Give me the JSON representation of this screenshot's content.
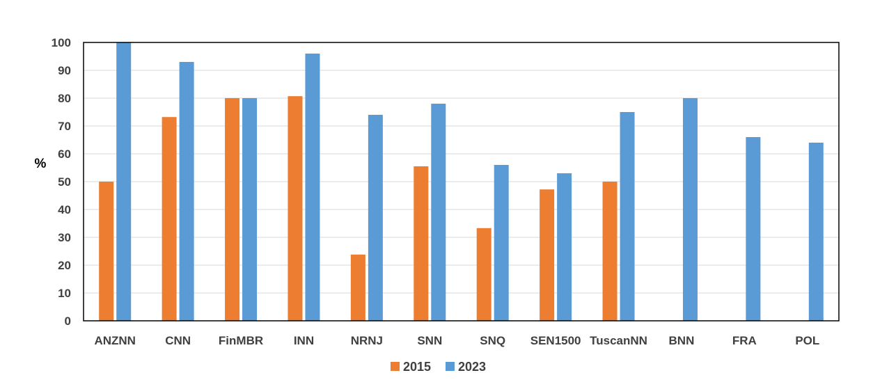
{
  "chart_data": {
    "type": "bar",
    "categories": [
      "ANZNN",
      "CNN",
      "FinMBR",
      "INN",
      "NRNJ",
      "SNN",
      "SNQ",
      "SEN1500",
      "TuscanNN",
      "BNN",
      "FRA",
      "POL"
    ],
    "series": [
      {
        "name": "2015",
        "color": "#ED7D31",
        "values": [
          50,
          73.2,
          80,
          80.7,
          23.8,
          55.5,
          33.3,
          47.2,
          50,
          null,
          null,
          null
        ]
      },
      {
        "name": "2023",
        "color": "#5B9BD5",
        "values": [
          100,
          93,
          80,
          96,
          74,
          78,
          56,
          53,
          75,
          80,
          66,
          64
        ]
      }
    ],
    "ylabel": "%",
    "ylim": [
      0,
      100
    ],
    "yticks": [
      "0",
      "10",
      "20",
      "30",
      "40",
      "50",
      "60",
      "70",
      "80",
      "90",
      "100"
    ],
    "grid": true,
    "legend_position": "bottom"
  }
}
